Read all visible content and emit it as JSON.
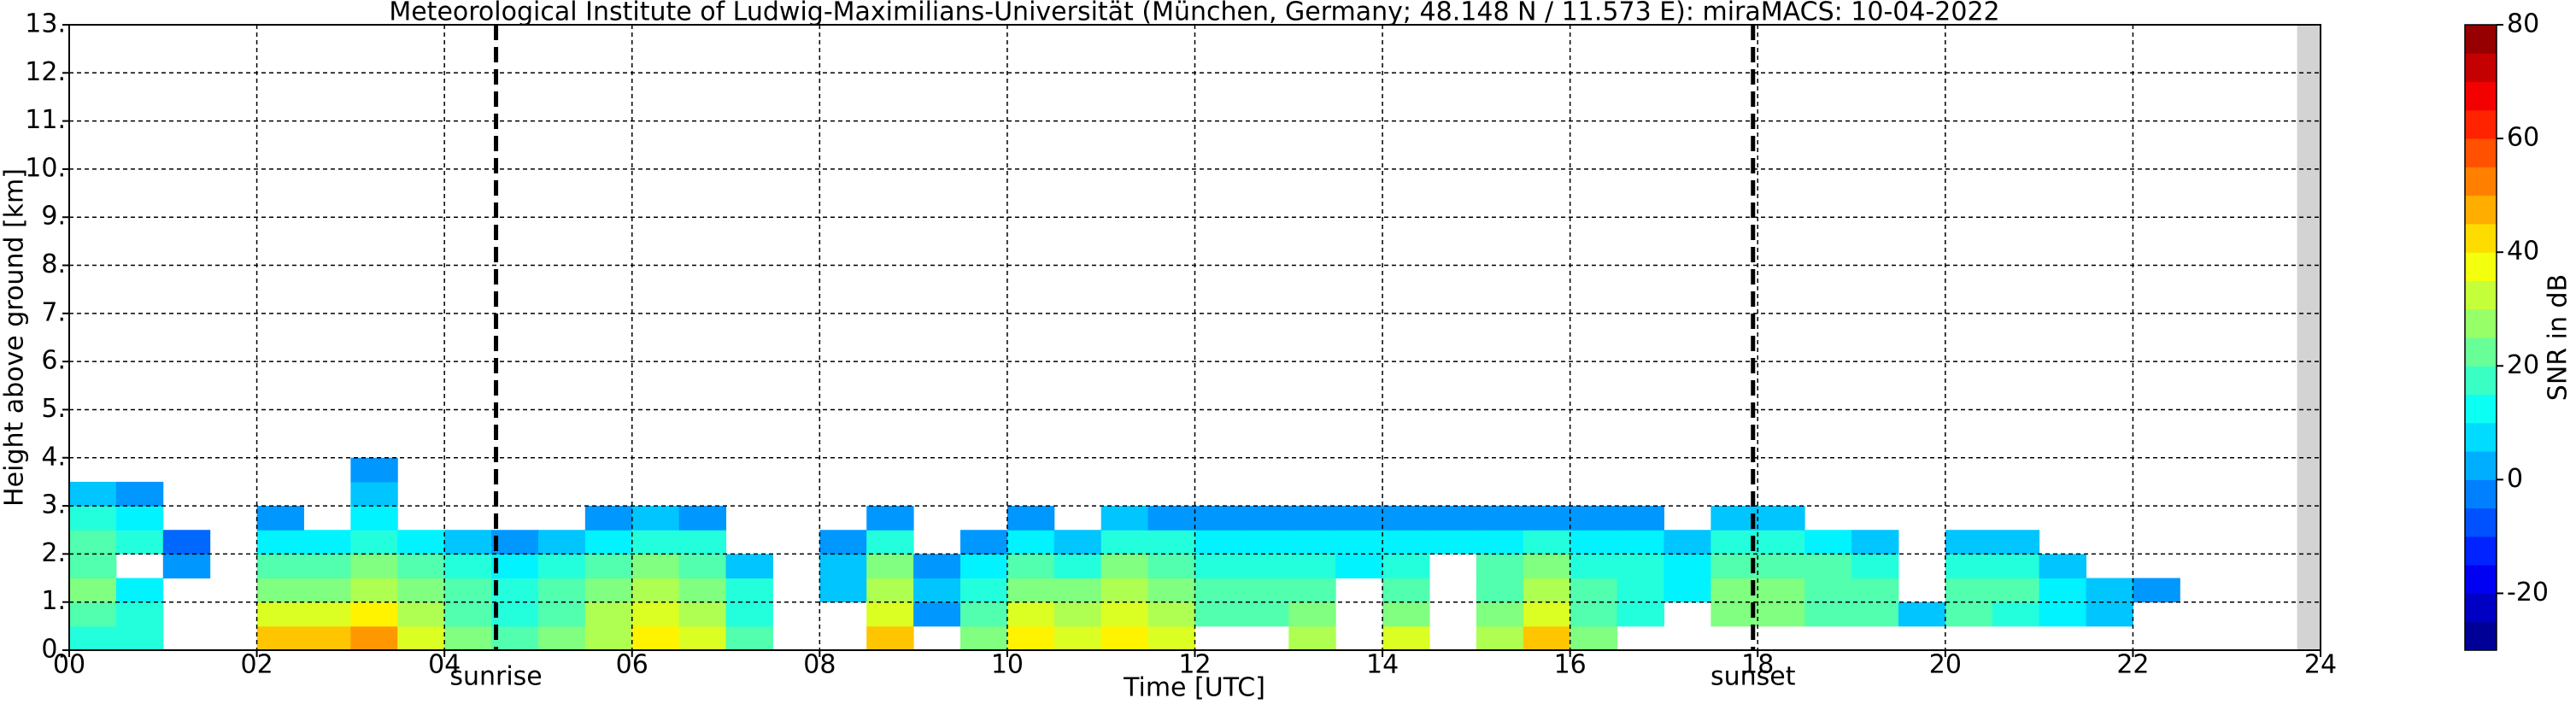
{
  "chart_data": {
    "type": "heatmap",
    "title": "Meteorological Institute of Ludwig-Maximilians-Universität (München, Germany; 48.148 N / 11.573 E):    miraMACS: 10-04-2022",
    "x_label": "Time [UTC]",
    "y_label": "Height above ground [km]",
    "colorbar_label": "SNR in dB",
    "xlim": [
      0,
      24
    ],
    "ylim": [
      0,
      13
    ],
    "xticks": [
      {
        "value": 0,
        "label": "00"
      },
      {
        "value": 2,
        "label": "02"
      },
      {
        "value": 4,
        "label": "04"
      },
      {
        "value": 6,
        "label": "06"
      },
      {
        "value": 8,
        "label": "08"
      },
      {
        "value": 10,
        "label": "10"
      },
      {
        "value": 12,
        "label": "12"
      },
      {
        "value": 14,
        "label": "14"
      },
      {
        "value": 16,
        "label": "16"
      },
      {
        "value": 18,
        "label": "18"
      },
      {
        "value": 20,
        "label": "20"
      },
      {
        "value": 22,
        "label": "22"
      },
      {
        "value": 24,
        "label": "24"
      }
    ],
    "yticks": [
      {
        "value": 0,
        "label": "0."
      },
      {
        "value": 1,
        "label": "1."
      },
      {
        "value": 2,
        "label": "2."
      },
      {
        "value": 3,
        "label": "3."
      },
      {
        "value": 4,
        "label": "4."
      },
      {
        "value": 5,
        "label": "5."
      },
      {
        "value": 6,
        "label": "6."
      },
      {
        "value": 7,
        "label": "7."
      },
      {
        "value": 8,
        "label": "8."
      },
      {
        "value": 9,
        "label": "9."
      },
      {
        "value": 10,
        "label": "10."
      },
      {
        "value": 11,
        "label": "11."
      },
      {
        "value": 12,
        "label": "12."
      },
      {
        "value": 13,
        "label": "13."
      }
    ],
    "clim": [
      -30,
      80
    ],
    "cticks": [
      -20,
      0,
      20,
      40,
      60,
      80
    ],
    "grid": true,
    "annotations": [
      {
        "x": 4.55,
        "label": "sunrise"
      },
      {
        "x": 17.95,
        "label": "sunset"
      }
    ],
    "shaded_xrange": [
      23.75,
      24
    ],
    "xbins": [
      0,
      0.5,
      1,
      1.5,
      2,
      2.5,
      3,
      3.5,
      4,
      4.5,
      5,
      5.5,
      6,
      6.5,
      7,
      7.5,
      8,
      8.5,
      9,
      9.5,
      10,
      10.5,
      11,
      11.5,
      12,
      12.5,
      13,
      13.5,
      14,
      14.5,
      15,
      15.5,
      16,
      16.5,
      17,
      17.5,
      18,
      18.5,
      19,
      19.5,
      20,
      20.5,
      21,
      21.5,
      22,
      22.5,
      23,
      23.5,
      24
    ],
    "ybins": [
      0,
      0.5,
      1,
      1.5,
      2,
      2.5,
      3,
      3.5,
      4
    ],
    "values": [
      [
        15,
        15,
        null,
        null,
        45,
        45,
        50,
        35,
        25,
        20,
        25,
        30,
        40,
        35,
        20,
        null,
        null,
        45,
        null,
        25,
        40,
        35,
        40,
        35,
        null,
        null,
        30,
        null,
        35,
        null,
        30,
        45,
        25,
        null,
        null,
        null,
        null,
        null,
        null,
        null,
        null,
        null,
        null,
        null,
        null,
        null,
        null,
        null
      ],
      [
        20,
        15,
        null,
        null,
        35,
        35,
        40,
        30,
        20,
        15,
        20,
        30,
        35,
        30,
        15,
        null,
        null,
        35,
        0,
        20,
        35,
        30,
        35,
        30,
        20,
        20,
        25,
        null,
        25,
        null,
        25,
        35,
        20,
        15,
        null,
        25,
        25,
        20,
        20,
        5,
        20,
        15,
        10,
        5,
        null,
        null,
        null,
        null
      ],
      [
        25,
        10,
        null,
        null,
        25,
        25,
        30,
        25,
        20,
        15,
        20,
        25,
        30,
        25,
        15,
        null,
        5,
        30,
        5,
        15,
        25,
        25,
        30,
        25,
        20,
        20,
        20,
        null,
        20,
        null,
        20,
        30,
        20,
        15,
        10,
        25,
        25,
        20,
        20,
        null,
        20,
        20,
        10,
        5,
        0,
        null,
        null,
        null
      ],
      [
        20,
        null,
        0,
        null,
        20,
        20,
        25,
        20,
        15,
        10,
        15,
        20,
        25,
        20,
        5,
        null,
        5,
        25,
        0,
        10,
        20,
        15,
        25,
        20,
        15,
        15,
        15,
        10,
        15,
        null,
        20,
        25,
        15,
        15,
        10,
        20,
        20,
        20,
        15,
        null,
        15,
        15,
        5,
        null,
        null,
        null,
        null,
        null
      ],
      [
        20,
        15,
        -5,
        null,
        10,
        10,
        15,
        10,
        5,
        0,
        5,
        10,
        15,
        15,
        null,
        null,
        0,
        15,
        null,
        0,
        10,
        5,
        15,
        15,
        10,
        10,
        10,
        10,
        10,
        10,
        10,
        15,
        10,
        10,
        5,
        15,
        15,
        10,
        5,
        null,
        5,
        5,
        null,
        null,
        null,
        null,
        null,
        null
      ],
      [
        15,
        10,
        null,
        null,
        0,
        null,
        10,
        null,
        null,
        null,
        null,
        0,
        5,
        0,
        null,
        null,
        null,
        0,
        null,
        null,
        0,
        null,
        5,
        0,
        0,
        0,
        0,
        0,
        0,
        0,
        0,
        0,
        0,
        0,
        null,
        5,
        5,
        null,
        null,
        null,
        null,
        null,
        null,
        null,
        null,
        null,
        null,
        null
      ],
      [
        5,
        0,
        null,
        null,
        null,
        null,
        5,
        null,
        null,
        null,
        null,
        null,
        null,
        null,
        null,
        null,
        null,
        null,
        null,
        null,
        null,
        null,
        null,
        null,
        null,
        null,
        null,
        null,
        null,
        null,
        null,
        null,
        null,
        null,
        null,
        null,
        null,
        null,
        null,
        null,
        null,
        null,
        null,
        null,
        null,
        null,
        null,
        null
      ],
      [
        null,
        null,
        null,
        null,
        null,
        null,
        0,
        null,
        null,
        null,
        null,
        null,
        null,
        null,
        null,
        null,
        null,
        null,
        null,
        null,
        null,
        null,
        null,
        null,
        null,
        null,
        null,
        null,
        null,
        null,
        null,
        null,
        null,
        null,
        null,
        null,
        null,
        null,
        null,
        null,
        null,
        null,
        null,
        null,
        null,
        null,
        null,
        null
      ]
    ]
  }
}
